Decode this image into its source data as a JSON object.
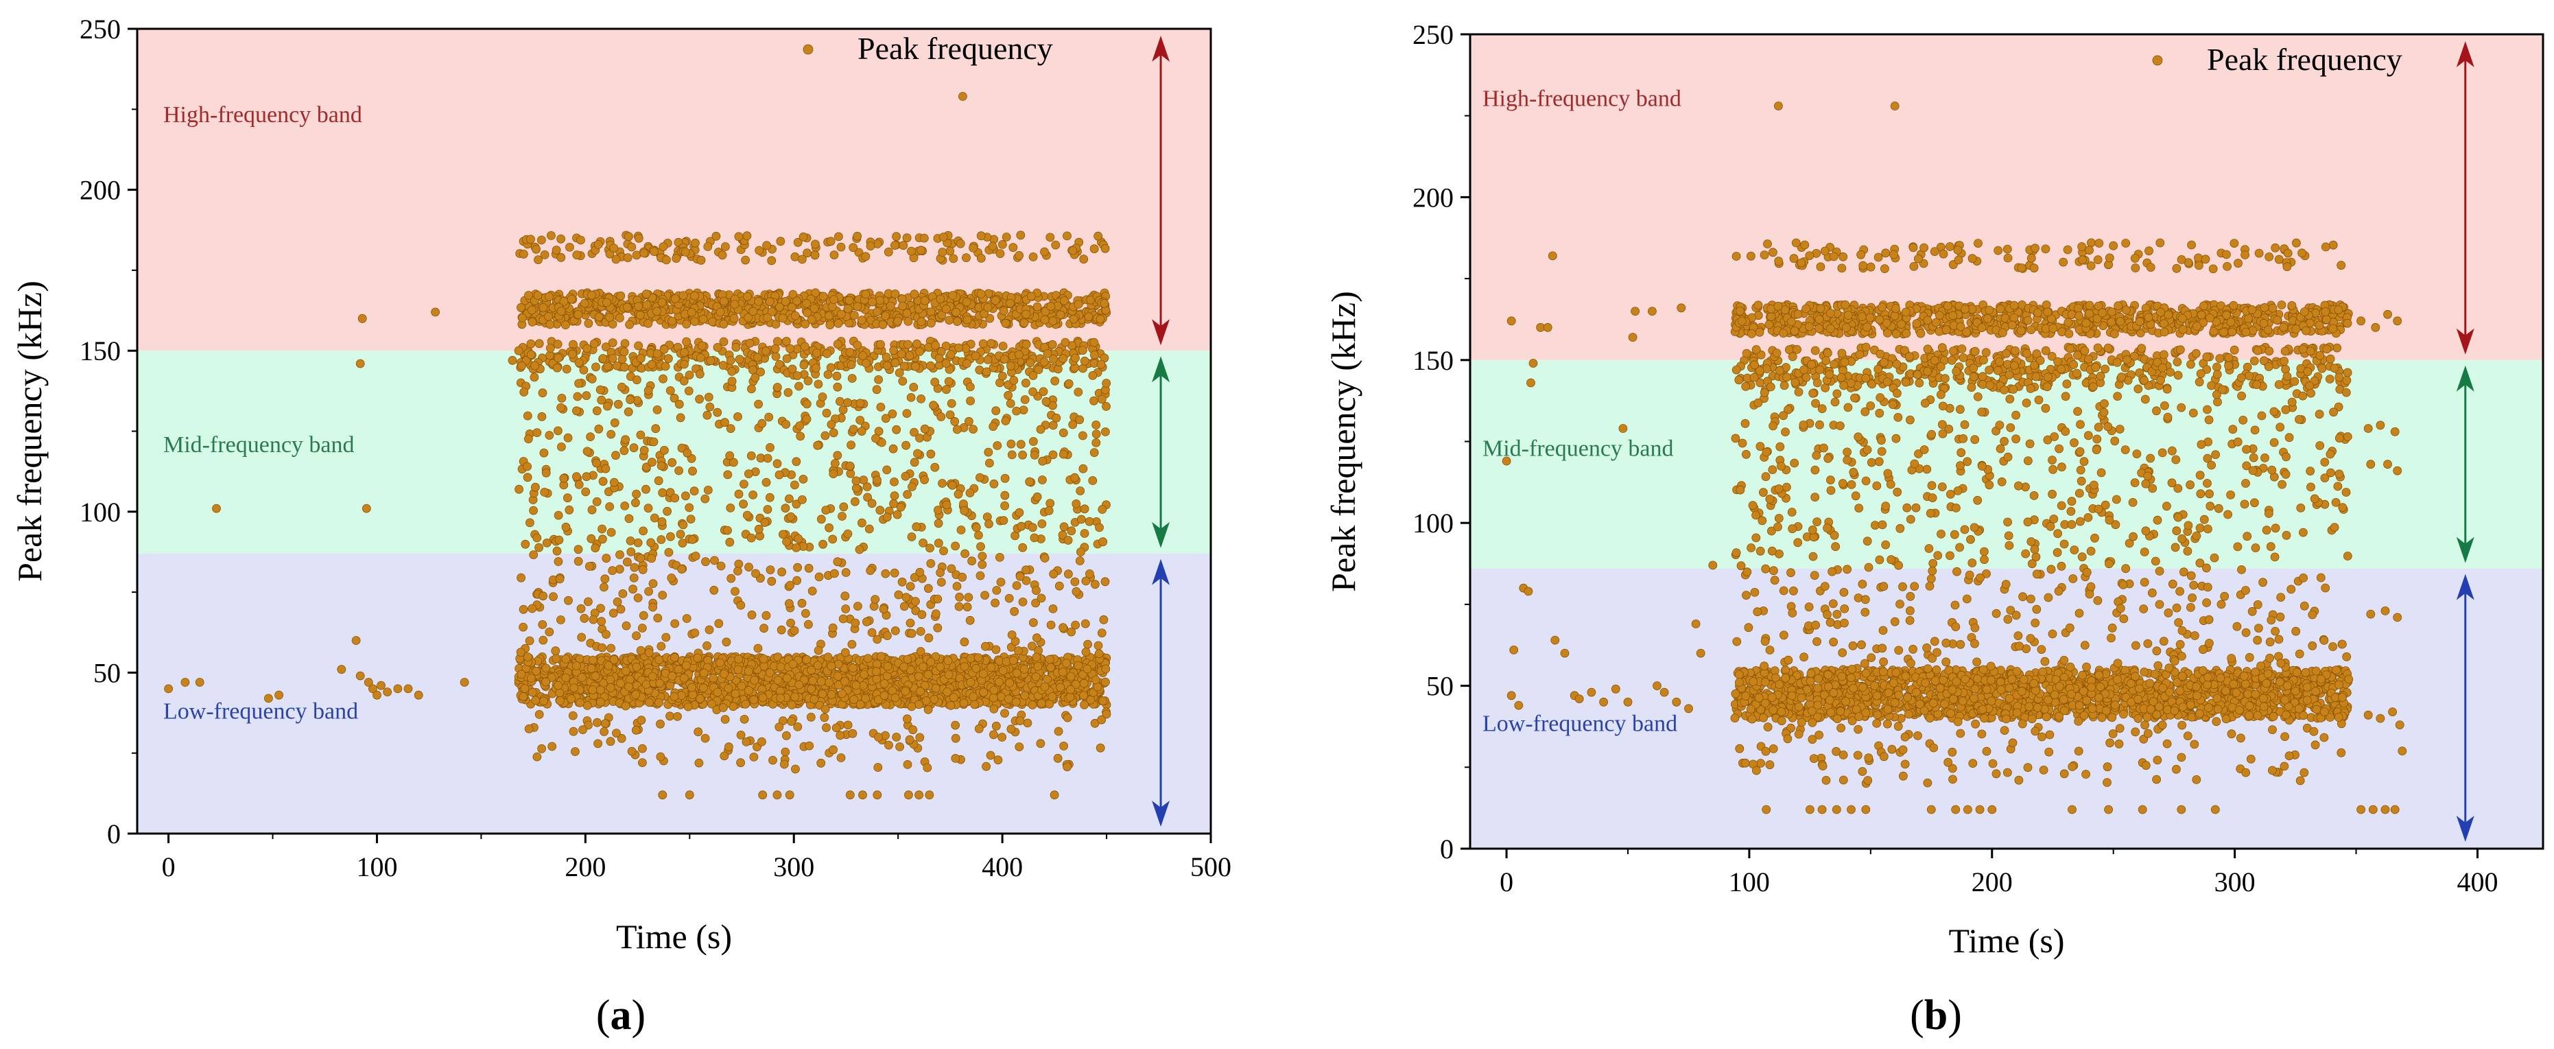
{
  "chart_data": [
    {
      "type": "scatter",
      "panel_label": "(a)",
      "panel_letter": "a",
      "xlabel": "Time (s)",
      "ylabel": "Peak frequency (kHz)",
      "xlim": [
        -15,
        500
      ],
      "ylim": [
        0,
        250
      ],
      "xticks": [
        0,
        100,
        200,
        300,
        400,
        500
      ],
      "yticks": [
        0,
        50,
        100,
        150,
        200,
        250
      ],
      "legend": "Peak frequency",
      "point_color": "#c8821a",
      "point_count": 4500,
      "bands": [
        {
          "name": "High-frequency band",
          "from": 150,
          "to": 250,
          "fill": "#fbd9d7",
          "text_color": "#a12a2a",
          "arrow_color": "#a3151a"
        },
        {
          "name": "Mid-frequency band",
          "from": 87,
          "to": 150,
          "fill": "#d6fae8",
          "text_color": "#2a7a55",
          "arrow_color": "#167a45"
        },
        {
          "name": "Low-frequency band",
          "from": 0,
          "to": 87,
          "fill": "#e0e3f7",
          "text_color": "#2a43a8",
          "arrow_color": "#2240b0"
        }
      ],
      "arrow_x": 476,
      "active_range": [
        168,
        450
      ],
      "sparse_points": [
        [
          0,
          45
        ],
        [
          8,
          47
        ],
        [
          15,
          47
        ],
        [
          23,
          101
        ],
        [
          48,
          42
        ],
        [
          53,
          43
        ],
        [
          83,
          51
        ],
        [
          90,
          60
        ],
        [
          92,
          146
        ],
        [
          93,
          160
        ],
        [
          95,
          101
        ],
        [
          92,
          49
        ],
        [
          96,
          47
        ],
        [
          98,
          45
        ],
        [
          100,
          43
        ],
        [
          102,
          46
        ],
        [
          105,
          44
        ],
        [
          110,
          45
        ],
        [
          115,
          45
        ],
        [
          120,
          43
        ],
        [
          128,
          162
        ],
        [
          142,
          47
        ],
        [
          237,
          12
        ],
        [
          250,
          12
        ],
        [
          285,
          12
        ],
        [
          292,
          12
        ],
        [
          298,
          12
        ],
        [
          327,
          12
        ],
        [
          333,
          12
        ],
        [
          340,
          12
        ],
        [
          355,
          12
        ],
        [
          360,
          12
        ],
        [
          365,
          12
        ],
        [
          381,
          229
        ],
        [
          425,
          12
        ],
        [
          165,
          147
        ],
        [
          168,
          150
        ]
      ],
      "cluster_bands": [
        {
          "from": 40,
          "to": 55,
          "weight": 0.42
        },
        {
          "from": 158,
          "to": 168,
          "weight": 0.2
        },
        {
          "from": 144,
          "to": 153,
          "weight": 0.08
        },
        {
          "from": 178,
          "to": 186,
          "weight": 0.04
        },
        {
          "from": 12,
          "to": 150,
          "weight": 0.26
        }
      ]
    },
    {
      "type": "scatter",
      "panel_label": "(b)",
      "panel_letter": "b",
      "xlabel": "Time (s)",
      "ylabel": "Peak frequency (kHz)",
      "xlim": [
        -15,
        427
      ],
      "ylim": [
        0,
        250
      ],
      "xticks": [
        0,
        100,
        200,
        300,
        400
      ],
      "yticks": [
        0,
        50,
        100,
        150,
        200,
        250
      ],
      "legend": "Peak  frequency",
      "point_color": "#c8821a",
      "point_count": 4200,
      "bands": [
        {
          "name": "High-frequency band",
          "from": 150,
          "to": 250,
          "fill": "#fbd9d7",
          "text_color": "#a12a2a",
          "arrow_color": "#a3151a"
        },
        {
          "name": "Mid-frequency band",
          "from": 86,
          "to": 150,
          "fill": "#d6fae8",
          "text_color": "#2a7a55",
          "arrow_color": "#167a45"
        },
        {
          "name": "Low-frequency band",
          "from": 0,
          "to": 86,
          "fill": "#e0e3f7",
          "text_color": "#2a43a8",
          "arrow_color": "#2240b0"
        }
      ],
      "arrow_x": 395,
      "active_range": [
        94,
        347
      ],
      "sparse_points": [
        [
          0,
          119
        ],
        [
          2,
          162
        ],
        [
          3,
          61
        ],
        [
          2,
          47
        ],
        [
          5,
          44
        ],
        [
          7,
          80
        ],
        [
          9,
          79
        ],
        [
          10,
          143
        ],
        [
          11,
          149
        ],
        [
          14,
          160
        ],
        [
          17,
          160
        ],
        [
          19,
          182
        ],
        [
          20,
          64
        ],
        [
          24,
          60
        ],
        [
          28,
          47
        ],
        [
          30,
          46
        ],
        [
          35,
          48
        ],
        [
          40,
          45
        ],
        [
          45,
          49
        ],
        [
          48,
          129
        ],
        [
          50,
          45
        ],
        [
          52,
          157
        ],
        [
          53,
          165
        ],
        [
          60,
          165
        ],
        [
          62,
          50
        ],
        [
          65,
          48
        ],
        [
          70,
          45
        ],
        [
          72,
          166
        ],
        [
          75,
          43
        ],
        [
          78,
          69
        ],
        [
          80,
          60
        ],
        [
          85,
          87
        ],
        [
          107,
          12
        ],
        [
          112,
          228
        ],
        [
          125,
          12
        ],
        [
          130,
          12
        ],
        [
          136,
          12
        ],
        [
          142,
          12
        ],
        [
          148,
          12
        ],
        [
          160,
          228
        ],
        [
          175,
          12
        ],
        [
          185,
          12
        ],
        [
          190,
          12
        ],
        [
          195,
          12
        ],
        [
          200,
          12
        ],
        [
          233,
          12
        ],
        [
          248,
          12
        ],
        [
          262,
          12
        ],
        [
          278,
          12
        ],
        [
          292,
          12
        ],
        [
          352,
          12
        ],
        [
          357,
          12
        ],
        [
          362,
          12
        ],
        [
          366,
          12
        ],
        [
          369,
          30
        ],
        [
          352,
          162
        ],
        [
          358,
          160
        ],
        [
          363,
          164
        ],
        [
          367,
          162
        ],
        [
          355,
          129
        ],
        [
          360,
          130
        ],
        [
          366,
          128
        ],
        [
          356,
          118
        ],
        [
          363,
          118
        ],
        [
          367,
          116
        ],
        [
          356,
          72
        ],
        [
          362,
          73
        ],
        [
          367,
          71
        ],
        [
          355,
          41
        ],
        [
          360,
          40
        ],
        [
          365,
          42
        ],
        [
          368,
          38
        ]
      ],
      "cluster_bands": [
        {
          "from": 40,
          "to": 55,
          "weight": 0.42
        },
        {
          "from": 158,
          "to": 167,
          "weight": 0.2
        },
        {
          "from": 141,
          "to": 154,
          "weight": 0.1
        },
        {
          "from": 178,
          "to": 186,
          "weight": 0.03
        },
        {
          "from": 12,
          "to": 150,
          "weight": 0.25
        }
      ]
    }
  ]
}
